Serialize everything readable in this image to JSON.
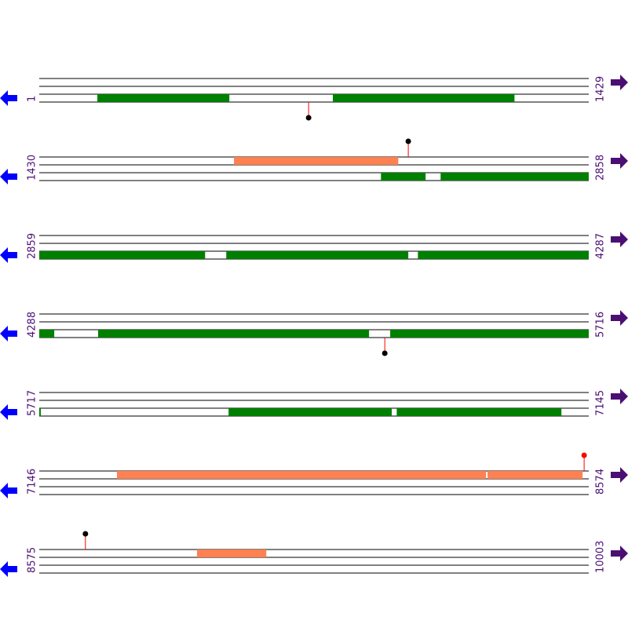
{
  "rows": [
    {
      "start": 1,
      "end": 1429,
      "features": [
        {
          "lane": 2,
          "from": 152,
          "to": 495,
          "color": "#008000"
        },
        {
          "lane": 2,
          "from": 764,
          "to": 1236,
          "color": "#008000"
        }
      ],
      "markers": [
        {
          "pos": 701,
          "dir": "down",
          "color": "#000000"
        }
      ]
    },
    {
      "start": 1430,
      "end": 2858,
      "features": [
        {
          "lane": 0,
          "from": 1936,
          "to": 2363,
          "color": "#ff8050"
        },
        {
          "lane": 2,
          "from": 2318,
          "to": 2434,
          "color": "#008000"
        },
        {
          "lane": 2,
          "from": 2473,
          "to": 2858,
          "color": "#008000"
        }
      ],
      "markers": [
        {
          "pos": 2389,
          "dir": "up",
          "color": "#000000"
        }
      ]
    },
    {
      "start": 2859,
      "end": 4287,
      "features": [
        {
          "lane": 2,
          "from": 2859,
          "to": 3290,
          "color": "#008000"
        },
        {
          "lane": 2,
          "from": 3345,
          "to": 3818,
          "color": "#008000"
        },
        {
          "lane": 2,
          "from": 3843,
          "to": 4287,
          "color": "#008000"
        }
      ],
      "markers": []
    },
    {
      "start": 4288,
      "end": 5716,
      "features": [
        {
          "lane": 2,
          "from": 4288,
          "to": 4327,
          "color": "#008000"
        },
        {
          "lane": 2,
          "from": 4441,
          "to": 5145,
          "color": "#008000"
        },
        {
          "lane": 2,
          "from": 5200,
          "to": 5716,
          "color": "#008000"
        }
      ],
      "markers": [
        {
          "pos": 5186,
          "dir": "down",
          "color": "#000000"
        }
      ]
    },
    {
      "start": 5717,
      "end": 7145,
      "features": [
        {
          "lane": 2,
          "from": 5717,
          "to": 5721,
          "color": "#008000"
        },
        {
          "lane": 2,
          "from": 6209,
          "to": 6633,
          "color": "#008000"
        },
        {
          "lane": 2,
          "from": 6646,
          "to": 7074,
          "color": "#008000"
        }
      ],
      "markers": []
    },
    {
      "start": 7146,
      "end": 8574,
      "features": [
        {
          "lane": 0,
          "from": 7348,
          "to": 8307,
          "color": "#ff8050"
        },
        {
          "lane": 0,
          "from": 8311,
          "to": 8558,
          "color": "#ff8050"
        }
      ],
      "markers": [
        {
          "pos": 8562,
          "dir": "up",
          "color": "#ff0000"
        }
      ]
    },
    {
      "start": 8575,
      "end": 10003,
      "features": [
        {
          "lane": 0,
          "from": 8985,
          "to": 9165,
          "color": "#ff8050"
        }
      ],
      "markers": [
        {
          "pos": 8695,
          "dir": "up",
          "color": "#000000"
        }
      ]
    }
  ]
}
